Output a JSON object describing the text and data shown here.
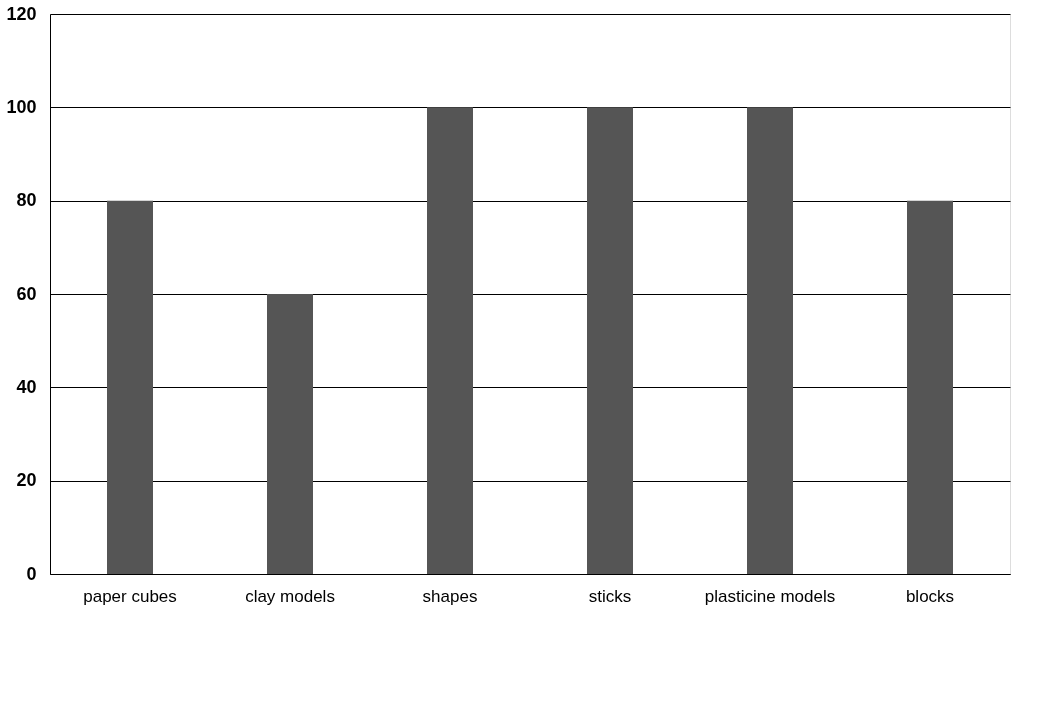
{
  "chart_data": {
    "type": "bar",
    "categories": [
      "paper cubes",
      "clay models",
      "shapes",
      "sticks",
      "plasticine models",
      "blocks"
    ],
    "values": [
      80,
      60,
      100,
      100,
      100,
      80
    ],
    "color": "#555555",
    "ylim": [
      0,
      120
    ],
    "yticks": [
      0,
      20,
      40,
      60,
      80,
      100,
      120
    ],
    "grid": "y"
  }
}
